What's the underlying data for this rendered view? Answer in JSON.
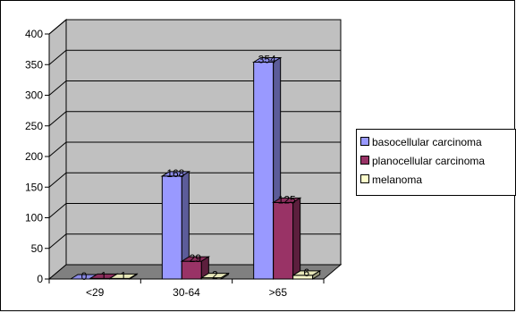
{
  "chart_data": {
    "type": "bar",
    "categories": [
      "<29",
      "30-64",
      ">65"
    ],
    "series": [
      {
        "name": "basocellular carcinoma",
        "values": [
          0,
          168,
          354
        ],
        "color": "#9999ff"
      },
      {
        "name": "planocellular carcinoma",
        "values": [
          1,
          29,
          125
        ],
        "color": "#993366"
      },
      {
        "name": "melanoma",
        "values": [
          1,
          2,
          6
        ],
        "color": "#ffffcc"
      }
    ],
    "data_labels": [
      [
        "0",
        "168",
        "354"
      ],
      [
        "1",
        "29",
        "125"
      ],
      [
        "1",
        "2",
        "6"
      ]
    ],
    "yticks": [
      "0",
      "50",
      "100",
      "150",
      "200",
      "250",
      "300",
      "350",
      "400"
    ],
    "ylim": [
      0,
      400
    ],
    "grid": true,
    "three_d": true,
    "legend_position": "right",
    "wall_color": "#c0c0c0",
    "floor_color": "#808080"
  }
}
